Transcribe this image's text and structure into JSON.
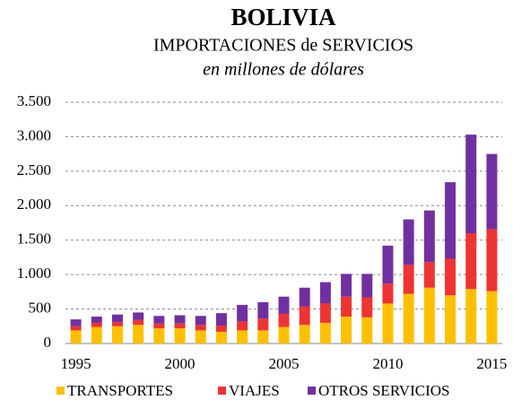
{
  "chart_data": {
    "type": "stacked_bar",
    "title": "BOLIVIA",
    "subtitle": "IMPORTACIONES de SERVICIOS",
    "y_axis_label": "en millones de dólares",
    "categories": [
      "1995",
      null,
      null,
      null,
      null,
      "2000",
      null,
      null,
      null,
      null,
      "2005",
      null,
      null,
      null,
      null,
      "2010",
      null,
      null,
      null,
      null,
      "2015"
    ],
    "series": [
      {
        "name": "TRANSPORTES",
        "color": "#ffc000",
        "values": [
          190,
          240,
          250,
          270,
          220,
          220,
          190,
          170,
          190,
          190,
          240,
          270,
          300,
          390,
          380,
          580,
          720,
          810,
          700,
          790,
          760
        ]
      },
      {
        "name": "VIAJES",
        "color": "#ee3333",
        "values": [
          60,
          60,
          60,
          70,
          70,
          70,
          80,
          90,
          130,
          170,
          190,
          270,
          280,
          290,
          290,
          290,
          420,
          370,
          530,
          810,
          900
        ]
      },
      {
        "name": "OTROS SERVICIOS",
        "color": "#7030a0",
        "values": [
          100,
          90,
          110,
          110,
          110,
          120,
          130,
          180,
          240,
          240,
          250,
          270,
          310,
          330,
          340,
          550,
          660,
          750,
          1110,
          1430,
          1090
        ]
      }
    ],
    "ylim": [
      0,
      3500
    ],
    "yticks": [
      0,
      500,
      {
        "value": 1000,
        "label": "1.000"
      },
      {
        "value": 1500,
        "label": "1.500"
      },
      {
        "value": 2000,
        "label": "2.000"
      },
      {
        "value": 2500,
        "label": "2.500"
      },
      {
        "value": 3000,
        "label": "3.000"
      },
      {
        "value": 3500,
        "label": "3.500"
      }
    ],
    "grid": true,
    "legend": "bottom"
  }
}
